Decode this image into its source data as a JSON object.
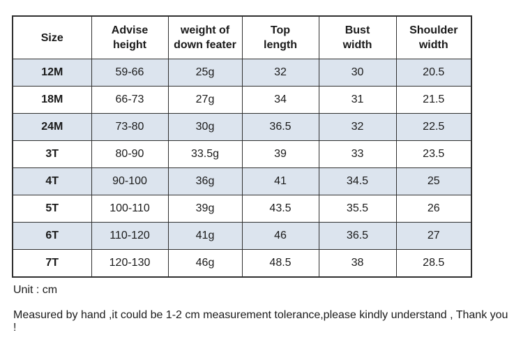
{
  "table": {
    "columns": [
      {
        "key": "size",
        "label": [
          "Size"
        ]
      },
      {
        "key": "advise_height",
        "label": [
          "Advise",
          "height"
        ]
      },
      {
        "key": "down_weight",
        "label": [
          "weight of",
          "down feater"
        ]
      },
      {
        "key": "top_length",
        "label": [
          "Top",
          "length"
        ]
      },
      {
        "key": "bust_width",
        "label": [
          "Bust",
          "width"
        ]
      },
      {
        "key": "shoulder_width",
        "label": [
          "Shoulder",
          "width"
        ]
      }
    ],
    "rows": [
      {
        "cells": [
          "12M",
          "59-66",
          "25g",
          "32",
          "30",
          "20.5"
        ]
      },
      {
        "cells": [
          "18M",
          "66-73",
          "27g",
          "34",
          "31",
          "21.5"
        ]
      },
      {
        "cells": [
          "24M",
          "73-80",
          "30g",
          "36.5",
          "32",
          "22.5"
        ]
      },
      {
        "cells": [
          "3T",
          "80-90",
          "33.5g",
          "39",
          "33",
          "23.5"
        ]
      },
      {
        "cells": [
          "4T",
          "90-100",
          "36g",
          "41",
          "34.5",
          "25"
        ]
      },
      {
        "cells": [
          "5T",
          "100-110",
          "39g",
          "43.5",
          "35.5",
          "26"
        ]
      },
      {
        "cells": [
          "6T",
          "110-120",
          "41g",
          "46",
          "36.5",
          "27"
        ]
      },
      {
        "cells": [
          "7T",
          "120-130",
          "46g",
          "48.5",
          "38",
          "28.5"
        ]
      }
    ]
  },
  "notes": {
    "unit": "Unit : cm",
    "tolerance": "Measured by hand ,it could be 1-2 cm measurement tolerance,please kindly understand , Thank you !"
  },
  "colors": {
    "stripe": "#dce4ee",
    "border": "#2f2f2f",
    "text": "#1a1a1a"
  },
  "chart_data": {
    "type": "table",
    "title": "",
    "columns": [
      "Size",
      "Advise height",
      "weight of down feater",
      "Top length",
      "Bust width",
      "Shoulder width"
    ],
    "rows": [
      [
        "12M",
        "59-66",
        "25g",
        32,
        30,
        20.5
      ],
      [
        "18M",
        "66-73",
        "27g",
        34,
        31,
        21.5
      ],
      [
        "24M",
        "73-80",
        "30g",
        36.5,
        32,
        22.5
      ],
      [
        "3T",
        "80-90",
        "33.5g",
        39,
        33,
        23.5
      ],
      [
        "4T",
        "90-100",
        "36g",
        41,
        34.5,
        25
      ],
      [
        "5T",
        "100-110",
        "39g",
        43.5,
        35.5,
        26
      ],
      [
        "6T",
        "110-120",
        "41g",
        46,
        36.5,
        27
      ],
      [
        "7T",
        "120-130",
        "46g",
        48.5,
        38,
        28.5
      ]
    ],
    "unit": "cm"
  }
}
